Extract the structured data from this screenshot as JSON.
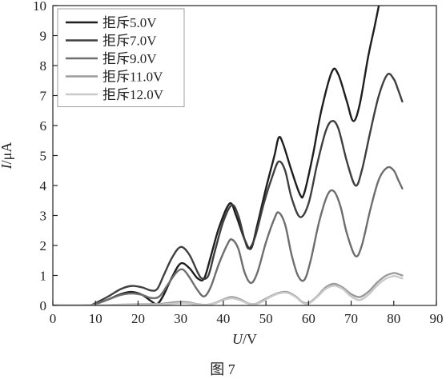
{
  "figure": {
    "caption": "图 7"
  },
  "chart_data": {
    "type": "line",
    "xlabel": {
      "italic": "U",
      "rest": "/V"
    },
    "ylabel": {
      "italic": "I",
      "rest": "/μA"
    },
    "xlim": [
      0,
      90
    ],
    "ylim": [
      0,
      10
    ],
    "xticks": [
      "0",
      "10",
      "20",
      "30",
      "40",
      "50",
      "60",
      "70",
      "80",
      "90"
    ],
    "yticks": [
      "0",
      "1",
      "2",
      "3",
      "4",
      "5",
      "6",
      "7",
      "8",
      "9",
      "10"
    ],
    "grid": false,
    "legend_position": "top-left",
    "series": [
      {
        "name": "拒斥5.0V",
        "color": "#1e1e1e",
        "points": [
          [
            0,
            0
          ],
          [
            8,
            0
          ],
          [
            10,
            0.05
          ],
          [
            13,
            0.2
          ],
          [
            16,
            0.38
          ],
          [
            18.5,
            0.45
          ],
          [
            21,
            0.35
          ],
          [
            23,
            0.15
          ],
          [
            24.5,
            0.05
          ],
          [
            26,
            0.35
          ],
          [
            28,
            0.95
          ],
          [
            30,
            1.4
          ],
          [
            32,
            1.25
          ],
          [
            34,
            0.9
          ],
          [
            35.5,
            0.9
          ],
          [
            37,
            1.6
          ],
          [
            39,
            2.6
          ],
          [
            41.5,
            3.4
          ],
          [
            43,
            3.0
          ],
          [
            45,
            2.2
          ],
          [
            46.5,
            1.9
          ],
          [
            48,
            2.7
          ],
          [
            50,
            3.9
          ],
          [
            52,
            5.0
          ],
          [
            53,
            5.6
          ],
          [
            54,
            5.4
          ],
          [
            56,
            4.5
          ],
          [
            58,
            3.7
          ],
          [
            59,
            3.75
          ],
          [
            61,
            5.0
          ],
          [
            63,
            6.5
          ],
          [
            65.5,
            7.8
          ],
          [
            67,
            7.7
          ],
          [
            69,
            6.8
          ],
          [
            70.5,
            6.15
          ],
          [
            72,
            6.7
          ],
          [
            74,
            8.3
          ],
          [
            75.5,
            9.3
          ],
          [
            76.5,
            10.0
          ]
        ]
      },
      {
        "name": "拒斥7.0V",
        "color": "#3f3f3f",
        "points": [
          [
            0,
            0
          ],
          [
            8,
            0
          ],
          [
            10,
            0.08
          ],
          [
            13,
            0.3
          ],
          [
            16,
            0.55
          ],
          [
            18.5,
            0.65
          ],
          [
            21,
            0.6
          ],
          [
            23,
            0.5
          ],
          [
            24.5,
            0.55
          ],
          [
            26,
            1.0
          ],
          [
            28,
            1.6
          ],
          [
            30,
            1.95
          ],
          [
            32,
            1.7
          ],
          [
            34,
            1.1
          ],
          [
            35,
            0.9
          ],
          [
            36.5,
            1.0
          ],
          [
            38,
            1.8
          ],
          [
            40,
            2.8
          ],
          [
            42,
            3.35
          ],
          [
            43.5,
            3.0
          ],
          [
            45,
            2.2
          ],
          [
            46,
            1.9
          ],
          [
            47.5,
            2.3
          ],
          [
            49.5,
            3.4
          ],
          [
            51.5,
            4.3
          ],
          [
            53,
            4.8
          ],
          [
            54.5,
            4.5
          ],
          [
            56,
            3.6
          ],
          [
            58,
            2.95
          ],
          [
            60,
            3.4
          ],
          [
            62,
            4.7
          ],
          [
            64,
            5.8
          ],
          [
            65.5,
            6.15
          ],
          [
            67,
            5.9
          ],
          [
            69,
            4.8
          ],
          [
            71,
            4.0
          ],
          [
            72.5,
            4.5
          ],
          [
            74.5,
            5.8
          ],
          [
            76.5,
            7.0
          ],
          [
            78.5,
            7.7
          ],
          [
            80,
            7.55
          ],
          [
            81,
            7.2
          ],
          [
            82,
            6.8
          ]
        ]
      },
      {
        "name": "拒斥9.0V",
        "color": "#6e6e6e",
        "points": [
          [
            0,
            0
          ],
          [
            8,
            0
          ],
          [
            10,
            0.05
          ],
          [
            13,
            0.2
          ],
          [
            16,
            0.35
          ],
          [
            18.5,
            0.4
          ],
          [
            21,
            0.35
          ],
          [
            23,
            0.25
          ],
          [
            25,
            0.3
          ],
          [
            27,
            0.7
          ],
          [
            29,
            1.1
          ],
          [
            30.5,
            1.2
          ],
          [
            32,
            0.95
          ],
          [
            34,
            0.5
          ],
          [
            35.5,
            0.3
          ],
          [
            37,
            0.6
          ],
          [
            39,
            1.4
          ],
          [
            41,
            2.05
          ],
          [
            42,
            2.2
          ],
          [
            43.5,
            1.9
          ],
          [
            45,
            1.1
          ],
          [
            46.5,
            0.75
          ],
          [
            48,
            1.1
          ],
          [
            50,
            2.1
          ],
          [
            52,
            2.9
          ],
          [
            53,
            3.1
          ],
          [
            54.5,
            2.7
          ],
          [
            56,
            1.7
          ],
          [
            57.5,
            1.0
          ],
          [
            59,
            0.85
          ],
          [
            60.5,
            1.5
          ],
          [
            62.5,
            2.8
          ],
          [
            64.5,
            3.7
          ],
          [
            66,
            3.8
          ],
          [
            67.5,
            3.3
          ],
          [
            69,
            2.4
          ],
          [
            71,
            1.65
          ],
          [
            72.5,
            2.0
          ],
          [
            74.5,
            3.2
          ],
          [
            76.5,
            4.2
          ],
          [
            78.5,
            4.6
          ],
          [
            80,
            4.5
          ],
          [
            81,
            4.2
          ],
          [
            82,
            3.9
          ]
        ]
      },
      {
        "name": "拒斥11.0V",
        "color": "#9a9a9a",
        "points": [
          [
            0,
            0
          ],
          [
            10,
            0
          ],
          [
            15,
            0.02
          ],
          [
            20,
            0.04
          ],
          [
            25,
            0.05
          ],
          [
            28,
            0.1
          ],
          [
            30,
            0.12
          ],
          [
            32,
            0.1
          ],
          [
            34,
            0.04
          ],
          [
            36,
            0.02
          ],
          [
            38,
            0.08
          ],
          [
            40,
            0.2
          ],
          [
            42,
            0.28
          ],
          [
            44,
            0.2
          ],
          [
            46,
            0.06
          ],
          [
            47.5,
            0.05
          ],
          [
            49,
            0.15
          ],
          [
            51,
            0.3
          ],
          [
            53,
            0.42
          ],
          [
            55,
            0.45
          ],
          [
            57,
            0.3
          ],
          [
            58.5,
            0.12
          ],
          [
            60,
            0.08
          ],
          [
            62,
            0.3
          ],
          [
            64,
            0.6
          ],
          [
            66,
            0.72
          ],
          [
            68,
            0.6
          ],
          [
            70,
            0.38
          ],
          [
            72,
            0.28
          ],
          [
            74,
            0.45
          ],
          [
            76,
            0.75
          ],
          [
            78,
            0.98
          ],
          [
            80,
            1.08
          ],
          [
            81,
            1.05
          ],
          [
            82,
            1.0
          ]
        ]
      },
      {
        "name": "拒斥12.0V",
        "color": "#c9c9c9",
        "points": [
          [
            0,
            0
          ],
          [
            10,
            0
          ],
          [
            15,
            0.02
          ],
          [
            20,
            0.03
          ],
          [
            25,
            0.03
          ],
          [
            28,
            0.06
          ],
          [
            30,
            0.08
          ],
          [
            32,
            0.07
          ],
          [
            34,
            0.03
          ],
          [
            36,
            0.02
          ],
          [
            38,
            0.07
          ],
          [
            40,
            0.18
          ],
          [
            42,
            0.24
          ],
          [
            44,
            0.17
          ],
          [
            46,
            0.05
          ],
          [
            47.5,
            0.04
          ],
          [
            49,
            0.12
          ],
          [
            51,
            0.28
          ],
          [
            53,
            0.4
          ],
          [
            55,
            0.42
          ],
          [
            57,
            0.28
          ],
          [
            58.5,
            0.1
          ],
          [
            60,
            0.06
          ],
          [
            62,
            0.28
          ],
          [
            64,
            0.55
          ],
          [
            66,
            0.66
          ],
          [
            68,
            0.55
          ],
          [
            70,
            0.3
          ],
          [
            72,
            0.18
          ],
          [
            74,
            0.35
          ],
          [
            76,
            0.65
          ],
          [
            78,
            0.88
          ],
          [
            80,
            0.98
          ],
          [
            81,
            0.95
          ],
          [
            82,
            0.9
          ]
        ]
      }
    ]
  }
}
